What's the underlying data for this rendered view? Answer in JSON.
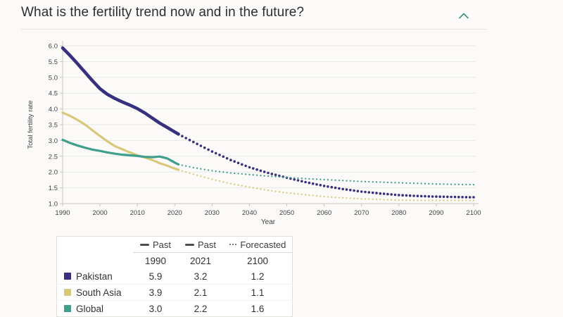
{
  "header": {
    "title": "What is the fertility trend now and in the future?",
    "collapse_icon": "chevron-up"
  },
  "colors": {
    "background": "#fbfaf8",
    "pakistan": "#37307e",
    "south_asia": "#d7c87a",
    "global": "#3f9e8c",
    "gridline": "#e8e7e3",
    "axis": "#c7c6c2",
    "tick_text": "#434343",
    "chevron": "#3d8f7e",
    "legend_marker": "#4d4d4d"
  },
  "chart_data": {
    "type": "line",
    "title": "",
    "xlabel": "Year",
    "ylabel": "Total fertility rate",
    "xlim": [
      1990,
      2100
    ],
    "ylim": [
      1.0,
      6.0
    ],
    "x_ticks": [
      1990,
      2000,
      2010,
      2020,
      2030,
      2040,
      2050,
      2060,
      2070,
      2080,
      2090,
      2100
    ],
    "y_ticks": [
      1.0,
      1.5,
      2.0,
      2.5,
      3.0,
      3.5,
      4.0,
      4.5,
      5.0,
      5.5,
      6.0
    ],
    "grid": "horizontal",
    "legend_position": "table-below",
    "line_styles": {
      "past": "solid",
      "forecast": "dotted"
    },
    "series": [
      {
        "name": "Pakistan",
        "color": "#37307e",
        "line_width": 4.6,
        "dot_radius": 1.8,
        "past": [
          [
            1990,
            5.93
          ],
          [
            1992,
            5.69
          ],
          [
            1994,
            5.43
          ],
          [
            1996,
            5.16
          ],
          [
            1998,
            4.89
          ],
          [
            2000,
            4.64
          ],
          [
            2002,
            4.46
          ],
          [
            2004,
            4.33
          ],
          [
            2006,
            4.22
          ],
          [
            2008,
            4.12
          ],
          [
            2010,
            4.01
          ],
          [
            2012,
            3.87
          ],
          [
            2014,
            3.71
          ],
          [
            2016,
            3.55
          ],
          [
            2018,
            3.41
          ],
          [
            2020,
            3.27
          ],
          [
            2021,
            3.2
          ]
        ],
        "forecast": [
          [
            2021,
            3.2
          ],
          [
            2025,
            2.95
          ],
          [
            2030,
            2.65
          ],
          [
            2035,
            2.38
          ],
          [
            2040,
            2.15
          ],
          [
            2045,
            1.97
          ],
          [
            2050,
            1.82
          ],
          [
            2055,
            1.68
          ],
          [
            2060,
            1.56
          ],
          [
            2065,
            1.46
          ],
          [
            2070,
            1.38
          ],
          [
            2075,
            1.32
          ],
          [
            2080,
            1.27
          ],
          [
            2085,
            1.24
          ],
          [
            2090,
            1.22
          ],
          [
            2095,
            1.21
          ],
          [
            2100,
            1.2
          ]
        ]
      },
      {
        "name": "South Asia",
        "color": "#d7c87a",
        "line_width": 3.2,
        "dot_radius": 1.15,
        "past": [
          [
            1990,
            3.88
          ],
          [
            1992,
            3.78
          ],
          [
            1994,
            3.65
          ],
          [
            1996,
            3.5
          ],
          [
            1998,
            3.32
          ],
          [
            2000,
            3.14
          ],
          [
            2002,
            2.97
          ],
          [
            2004,
            2.82
          ],
          [
            2006,
            2.72
          ],
          [
            2008,
            2.62
          ],
          [
            2010,
            2.53
          ],
          [
            2012,
            2.46
          ],
          [
            2014,
            2.38
          ],
          [
            2016,
            2.28
          ],
          [
            2018,
            2.2
          ],
          [
            2020,
            2.11
          ],
          [
            2021,
            2.07
          ]
        ],
        "forecast": [
          [
            2021,
            2.07
          ],
          [
            2025,
            1.93
          ],
          [
            2030,
            1.77
          ],
          [
            2035,
            1.63
          ],
          [
            2040,
            1.52
          ],
          [
            2045,
            1.42
          ],
          [
            2050,
            1.34
          ],
          [
            2055,
            1.28
          ],
          [
            2060,
            1.22
          ],
          [
            2065,
            1.18
          ],
          [
            2070,
            1.15
          ],
          [
            2075,
            1.13
          ],
          [
            2080,
            1.11
          ],
          [
            2085,
            1.1
          ],
          [
            2090,
            1.1
          ],
          [
            2095,
            1.1
          ],
          [
            2100,
            1.1
          ]
        ]
      },
      {
        "name": "Global",
        "color": "#3f9e8c",
        "line_width": 3.2,
        "dot_radius": 1.15,
        "past": [
          [
            1990,
            3.02
          ],
          [
            1992,
            2.92
          ],
          [
            1994,
            2.84
          ],
          [
            1996,
            2.77
          ],
          [
            1998,
            2.71
          ],
          [
            2000,
            2.67
          ],
          [
            2002,
            2.62
          ],
          [
            2004,
            2.58
          ],
          [
            2006,
            2.55
          ],
          [
            2008,
            2.53
          ],
          [
            2010,
            2.51
          ],
          [
            2012,
            2.48
          ],
          [
            2014,
            2.47
          ],
          [
            2016,
            2.49
          ],
          [
            2018,
            2.43
          ],
          [
            2020,
            2.3
          ],
          [
            2021,
            2.24
          ]
        ],
        "forecast": [
          [
            2021,
            2.24
          ],
          [
            2025,
            2.14
          ],
          [
            2030,
            2.04
          ],
          [
            2035,
            1.97
          ],
          [
            2040,
            1.92
          ],
          [
            2045,
            1.87
          ],
          [
            2050,
            1.83
          ],
          [
            2055,
            1.79
          ],
          [
            2060,
            1.76
          ],
          [
            2065,
            1.73
          ],
          [
            2070,
            1.7
          ],
          [
            2075,
            1.68
          ],
          [
            2080,
            1.66
          ],
          [
            2085,
            1.64
          ],
          [
            2090,
            1.62
          ],
          [
            2095,
            1.61
          ],
          [
            2100,
            1.6
          ]
        ]
      }
    ]
  },
  "table": {
    "legend_headers": [
      {
        "marker": "dash",
        "label": "Past"
      },
      {
        "marker": "dash",
        "label": "Past"
      },
      {
        "marker": "dots",
        "label": "Forecasted"
      }
    ],
    "year_headers": [
      "1990",
      "2021",
      "2100"
    ],
    "rows": [
      {
        "label": "Pakistan",
        "color": "#37307e",
        "values": [
          "5.9",
          "3.2",
          "1.2"
        ]
      },
      {
        "label": "South Asia",
        "color": "#d7c87a",
        "values": [
          "3.9",
          "2.1",
          "1.1"
        ]
      },
      {
        "label": "Global",
        "color": "#3f9e8c",
        "values": [
          "3.0",
          "2.2",
          "1.6"
        ]
      }
    ]
  }
}
